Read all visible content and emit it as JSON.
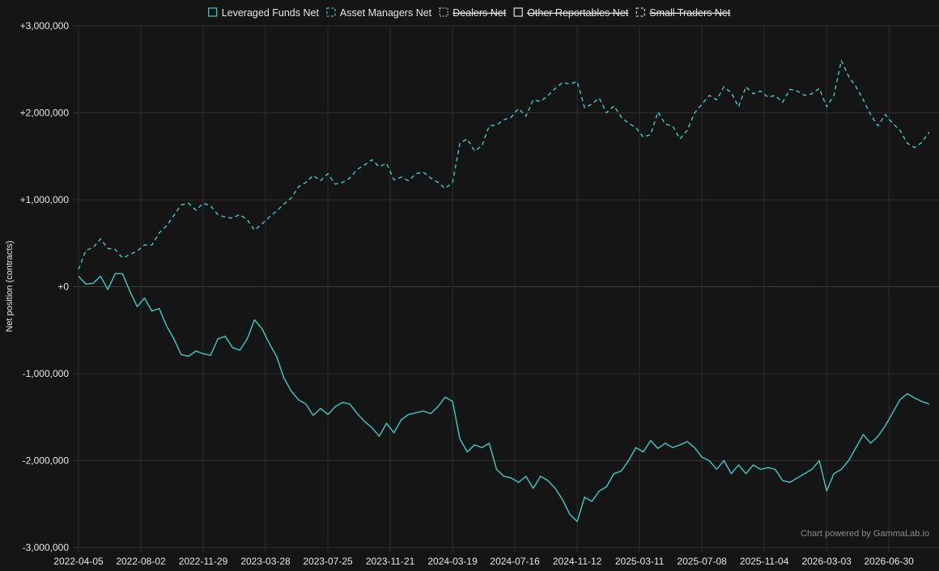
{
  "chart_data": {
    "type": "line",
    "ylabel": "Net position (contracts)",
    "credit": "Chart powered by GammaLab.io",
    "ylim": [
      -3000000,
      3000000
    ],
    "y_ticks": [
      3000000,
      2000000,
      1000000,
      0,
      -1000000,
      -2000000,
      -3000000
    ],
    "y_tick_labels": [
      "+3,000,000",
      "+2,000,000",
      "+1,000,000",
      "+0",
      "-1,000,000",
      "-2,000,000",
      "-3,000,000"
    ],
    "x_ticks": [
      "2022-04-05",
      "2022-08-02",
      "2022-11-29",
      "2023-03-28",
      "2023-07-25",
      "2023-11-21",
      "2024-03-19",
      "2024-07-16",
      "2024-11-12",
      "2025-03-11",
      "2025-07-08",
      "2025-11-04",
      "2026-03-03",
      "2026-06-30"
    ],
    "xlim": [
      "2022-04-05",
      "2026-09-15"
    ],
    "grid": true,
    "legend_position": "top-center",
    "series": [
      {
        "name": "Leveraged Funds Net",
        "color": "#3fbfba",
        "dash": "solid",
        "hidden": false,
        "points": [
          [
            "2022-04-05",
            120000
          ],
          [
            "2022-04-19",
            30000
          ],
          [
            "2022-05-03",
            40000
          ],
          [
            "2022-05-17",
            120000
          ],
          [
            "2022-05-31",
            -30000
          ],
          [
            "2022-06-14",
            150000
          ],
          [
            "2022-06-28",
            150000
          ],
          [
            "2022-07-12",
            -50000
          ],
          [
            "2022-07-26",
            -230000
          ],
          [
            "2022-08-09",
            -130000
          ],
          [
            "2022-08-23",
            -280000
          ],
          [
            "2022-09-06",
            -250000
          ],
          [
            "2022-09-20",
            -450000
          ],
          [
            "2022-10-04",
            -600000
          ],
          [
            "2022-10-18",
            -780000
          ],
          [
            "2022-11-01",
            -800000
          ],
          [
            "2022-11-15",
            -740000
          ],
          [
            "2022-11-29",
            -770000
          ],
          [
            "2022-12-13",
            -790000
          ],
          [
            "2022-12-27",
            -600000
          ],
          [
            "2023-01-10",
            -570000
          ],
          [
            "2023-01-24",
            -700000
          ],
          [
            "2023-02-07",
            -730000
          ],
          [
            "2023-02-21",
            -600000
          ],
          [
            "2023-03-07",
            -380000
          ],
          [
            "2023-03-21",
            -480000
          ],
          [
            "2023-04-04",
            -650000
          ],
          [
            "2023-04-18",
            -800000
          ],
          [
            "2023-05-02",
            -1050000
          ],
          [
            "2023-05-16",
            -1200000
          ],
          [
            "2023-05-30",
            -1300000
          ],
          [
            "2023-06-13",
            -1350000
          ],
          [
            "2023-06-27",
            -1480000
          ],
          [
            "2023-07-11",
            -1400000
          ],
          [
            "2023-07-25",
            -1470000
          ],
          [
            "2023-08-08",
            -1380000
          ],
          [
            "2023-08-22",
            -1330000
          ],
          [
            "2023-09-05",
            -1350000
          ],
          [
            "2023-09-19",
            -1460000
          ],
          [
            "2023-10-03",
            -1550000
          ],
          [
            "2023-10-17",
            -1620000
          ],
          [
            "2023-10-31",
            -1720000
          ],
          [
            "2023-11-14",
            -1570000
          ],
          [
            "2023-11-28",
            -1680000
          ],
          [
            "2023-12-12",
            -1530000
          ],
          [
            "2023-12-26",
            -1470000
          ],
          [
            "2024-01-09",
            -1450000
          ],
          [
            "2024-01-23",
            -1430000
          ],
          [
            "2024-02-06",
            -1460000
          ],
          [
            "2024-02-20",
            -1380000
          ],
          [
            "2024-03-05",
            -1270000
          ],
          [
            "2024-03-19",
            -1320000
          ],
          [
            "2024-04-02",
            -1750000
          ],
          [
            "2024-04-16",
            -1900000
          ],
          [
            "2024-04-30",
            -1820000
          ],
          [
            "2024-05-14",
            -1850000
          ],
          [
            "2024-05-28",
            -1800000
          ],
          [
            "2024-06-11",
            -2100000
          ],
          [
            "2024-06-25",
            -2180000
          ],
          [
            "2024-07-09",
            -2200000
          ],
          [
            "2024-07-23",
            -2250000
          ],
          [
            "2024-08-06",
            -2180000
          ],
          [
            "2024-08-20",
            -2320000
          ],
          [
            "2024-09-03",
            -2180000
          ],
          [
            "2024-09-17",
            -2230000
          ],
          [
            "2024-10-01",
            -2320000
          ],
          [
            "2024-10-15",
            -2450000
          ],
          [
            "2024-10-29",
            -2620000
          ],
          [
            "2024-11-12",
            -2700000
          ],
          [
            "2024-11-26",
            -2420000
          ],
          [
            "2024-12-10",
            -2470000
          ],
          [
            "2024-12-24",
            -2350000
          ],
          [
            "2025-01-07",
            -2300000
          ],
          [
            "2025-01-21",
            -2150000
          ],
          [
            "2025-02-04",
            -2120000
          ],
          [
            "2025-02-18",
            -2000000
          ],
          [
            "2025-03-04",
            -1850000
          ],
          [
            "2025-03-18",
            -1900000
          ],
          [
            "2025-04-01",
            -1770000
          ],
          [
            "2025-04-15",
            -1860000
          ],
          [
            "2025-04-29",
            -1800000
          ],
          [
            "2025-05-13",
            -1850000
          ],
          [
            "2025-05-27",
            -1820000
          ],
          [
            "2025-06-10",
            -1780000
          ],
          [
            "2025-06-24",
            -1850000
          ],
          [
            "2025-07-08",
            -1960000
          ],
          [
            "2025-07-22",
            -2000000
          ],
          [
            "2025-08-05",
            -2100000
          ],
          [
            "2025-08-19",
            -2000000
          ],
          [
            "2025-09-02",
            -2150000
          ],
          [
            "2025-09-16",
            -2050000
          ],
          [
            "2025-09-30",
            -2150000
          ],
          [
            "2025-10-14",
            -2050000
          ],
          [
            "2025-10-28",
            -2100000
          ],
          [
            "2025-11-11",
            -2080000
          ],
          [
            "2025-11-25",
            -2100000
          ],
          [
            "2025-12-09",
            -2230000
          ],
          [
            "2025-12-23",
            -2250000
          ],
          [
            "2026-01-06",
            -2200000
          ],
          [
            "2026-01-20",
            -2150000
          ],
          [
            "2026-02-03",
            -2100000
          ],
          [
            "2026-02-17",
            -2000000
          ],
          [
            "2026-03-03",
            -2350000
          ],
          [
            "2026-03-17",
            -2150000
          ],
          [
            "2026-03-31",
            -2100000
          ],
          [
            "2026-04-14",
            -2000000
          ],
          [
            "2026-04-28",
            -1850000
          ],
          [
            "2026-05-12",
            -1700000
          ],
          [
            "2026-05-26",
            -1800000
          ],
          [
            "2026-06-09",
            -1720000
          ],
          [
            "2026-06-23",
            -1600000
          ],
          [
            "2026-07-07",
            -1450000
          ],
          [
            "2026-07-21",
            -1300000
          ],
          [
            "2026-08-04",
            -1230000
          ],
          [
            "2026-08-18",
            -1280000
          ],
          [
            "2026-09-01",
            -1320000
          ],
          [
            "2026-09-15",
            -1350000
          ]
        ]
      },
      {
        "name": "Asset Managers Net",
        "color": "#3fbfba",
        "dash": "dashed",
        "hidden": false,
        "points": [
          [
            "2022-04-05",
            200000
          ],
          [
            "2022-04-19",
            420000
          ],
          [
            "2022-05-03",
            450000
          ],
          [
            "2022-05-17",
            550000
          ],
          [
            "2022-05-31",
            440000
          ],
          [
            "2022-06-14",
            430000
          ],
          [
            "2022-06-28",
            330000
          ],
          [
            "2022-07-12",
            370000
          ],
          [
            "2022-07-26",
            410000
          ],
          [
            "2022-08-09",
            480000
          ],
          [
            "2022-08-23",
            480000
          ],
          [
            "2022-09-06",
            620000
          ],
          [
            "2022-09-20",
            700000
          ],
          [
            "2022-10-04",
            820000
          ],
          [
            "2022-10-18",
            940000
          ],
          [
            "2022-11-01",
            960000
          ],
          [
            "2022-11-15",
            880000
          ],
          [
            "2022-11-29",
            960000
          ],
          [
            "2022-12-13",
            930000
          ],
          [
            "2022-12-27",
            830000
          ],
          [
            "2023-01-10",
            800000
          ],
          [
            "2023-01-24",
            790000
          ],
          [
            "2023-02-07",
            830000
          ],
          [
            "2023-02-21",
            770000
          ],
          [
            "2023-03-07",
            650000
          ],
          [
            "2023-03-21",
            720000
          ],
          [
            "2023-04-04",
            800000
          ],
          [
            "2023-04-18",
            870000
          ],
          [
            "2023-05-02",
            950000
          ],
          [
            "2023-05-16",
            1020000
          ],
          [
            "2023-05-30",
            1150000
          ],
          [
            "2023-06-13",
            1200000
          ],
          [
            "2023-06-27",
            1280000
          ],
          [
            "2023-07-11",
            1220000
          ],
          [
            "2023-07-25",
            1300000
          ],
          [
            "2023-08-08",
            1180000
          ],
          [
            "2023-08-22",
            1200000
          ],
          [
            "2023-09-05",
            1250000
          ],
          [
            "2023-09-19",
            1350000
          ],
          [
            "2023-10-03",
            1400000
          ],
          [
            "2023-10-17",
            1460000
          ],
          [
            "2023-10-31",
            1380000
          ],
          [
            "2023-11-14",
            1420000
          ],
          [
            "2023-11-28",
            1230000
          ],
          [
            "2023-12-12",
            1260000
          ],
          [
            "2023-12-26",
            1220000
          ],
          [
            "2024-01-09",
            1300000
          ],
          [
            "2024-01-23",
            1320000
          ],
          [
            "2024-02-06",
            1250000
          ],
          [
            "2024-02-20",
            1200000
          ],
          [
            "2024-03-05",
            1130000
          ],
          [
            "2024-03-19",
            1200000
          ],
          [
            "2024-04-02",
            1650000
          ],
          [
            "2024-04-16",
            1700000
          ],
          [
            "2024-04-30",
            1560000
          ],
          [
            "2024-05-14",
            1620000
          ],
          [
            "2024-05-28",
            1850000
          ],
          [
            "2024-06-11",
            1860000
          ],
          [
            "2024-06-25",
            1920000
          ],
          [
            "2024-07-09",
            1950000
          ],
          [
            "2024-07-23",
            2050000
          ],
          [
            "2024-08-06",
            1960000
          ],
          [
            "2024-08-20",
            2150000
          ],
          [
            "2024-09-03",
            2130000
          ],
          [
            "2024-09-17",
            2200000
          ],
          [
            "2024-10-01",
            2280000
          ],
          [
            "2024-10-15",
            2350000
          ],
          [
            "2024-10-29",
            2330000
          ],
          [
            "2024-11-12",
            2360000
          ],
          [
            "2024-11-26",
            2060000
          ],
          [
            "2024-12-10",
            2100000
          ],
          [
            "2024-12-24",
            2170000
          ],
          [
            "2025-01-07",
            2000000
          ],
          [
            "2025-01-21",
            2080000
          ],
          [
            "2025-02-04",
            1950000
          ],
          [
            "2025-02-18",
            1880000
          ],
          [
            "2025-03-04",
            1830000
          ],
          [
            "2025-03-18",
            1720000
          ],
          [
            "2025-04-01",
            1750000
          ],
          [
            "2025-04-15",
            2010000
          ],
          [
            "2025-04-29",
            1870000
          ],
          [
            "2025-05-13",
            1850000
          ],
          [
            "2025-05-27",
            1700000
          ],
          [
            "2025-06-10",
            1800000
          ],
          [
            "2025-06-24",
            2000000
          ],
          [
            "2025-07-08",
            2100000
          ],
          [
            "2025-07-22",
            2200000
          ],
          [
            "2025-08-05",
            2150000
          ],
          [
            "2025-08-19",
            2300000
          ],
          [
            "2025-09-02",
            2230000
          ],
          [
            "2025-09-16",
            2070000
          ],
          [
            "2025-09-30",
            2300000
          ],
          [
            "2025-10-14",
            2220000
          ],
          [
            "2025-10-28",
            2250000
          ],
          [
            "2025-11-11",
            2180000
          ],
          [
            "2025-11-25",
            2200000
          ],
          [
            "2025-12-09",
            2120000
          ],
          [
            "2025-12-23",
            2270000
          ],
          [
            "2026-01-06",
            2250000
          ],
          [
            "2026-01-20",
            2200000
          ],
          [
            "2026-02-03",
            2220000
          ],
          [
            "2026-02-17",
            2280000
          ],
          [
            "2026-03-03",
            2070000
          ],
          [
            "2026-03-17",
            2200000
          ],
          [
            "2026-03-31",
            2600000
          ],
          [
            "2026-04-14",
            2420000
          ],
          [
            "2026-04-28",
            2300000
          ],
          [
            "2026-05-12",
            2150000
          ],
          [
            "2026-05-26",
            1980000
          ],
          [
            "2026-06-09",
            1850000
          ],
          [
            "2026-06-23",
            1980000
          ],
          [
            "2026-07-07",
            1880000
          ],
          [
            "2026-07-21",
            1800000
          ],
          [
            "2026-08-04",
            1650000
          ],
          [
            "2026-08-18",
            1600000
          ],
          [
            "2026-09-01",
            1660000
          ],
          [
            "2026-09-15",
            1780000
          ]
        ]
      },
      {
        "name": "Dealers Net",
        "color": "#8a8a8a",
        "dash": "dotted",
        "hidden": true,
        "points": []
      },
      {
        "name": "Other Reportables Net",
        "color": "#8a8a8a",
        "dash": "solid",
        "hidden": true,
        "points": []
      },
      {
        "name": "Small Traders Net",
        "color": "#8a8a8a",
        "dash": "dashed",
        "hidden": true,
        "points": []
      }
    ]
  }
}
